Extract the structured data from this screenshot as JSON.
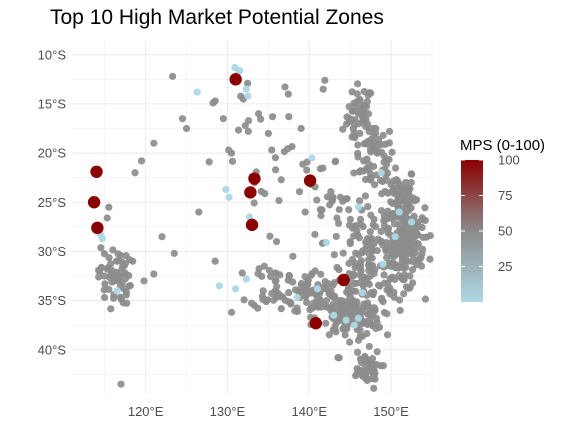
{
  "chart_data": {
    "type": "scatter",
    "title": "Top 10 High Market Potential Zones",
    "xlabel": "",
    "ylabel": "",
    "xlim": [
      111,
      155
    ],
    "ylim": [
      -44.5,
      -8.5
    ],
    "x_ticks": [
      120,
      130,
      140,
      150
    ],
    "x_tick_labels": [
      "120°E",
      "130°E",
      "140°E",
      "150°E"
    ],
    "y_ticks": [
      -10,
      -15,
      -20,
      -25,
      -30,
      -35,
      -40
    ],
    "y_tick_labels": [
      "10°S",
      "15°S",
      "20°S",
      "25°S",
      "30°S",
      "35°S",
      "40°S"
    ],
    "grid": true,
    "legend": {
      "title": "MPS (0-100)",
      "placement": "right",
      "ticks": [
        25,
        50,
        75,
        100
      ],
      "min": 0,
      "max": 100,
      "colors": {
        "low": "#add8e6",
        "mid": "#8c8c8c",
        "high": "#8b0000"
      }
    },
    "point_colors": {
      "other": "#8c8c8c",
      "light": "#add8e6",
      "top": "#8b0000"
    },
    "top10": [
      {
        "x": 131.0,
        "y": -12.5
      },
      {
        "x": 114.0,
        "y": -21.9
      },
      {
        "x": 133.3,
        "y": -22.6
      },
      {
        "x": 140.1,
        "y": -22.8
      },
      {
        "x": 132.8,
        "y": -24.0
      },
      {
        "x": 113.7,
        "y": -25.0
      },
      {
        "x": 133.0,
        "y": -27.3
      },
      {
        "x": 114.1,
        "y": -27.6
      },
      {
        "x": 144.2,
        "y": -32.9
      },
      {
        "x": 140.8,
        "y": -37.3
      }
    ],
    "light_points": [
      [
        130.9,
        -11.3
      ],
      [
        131.5,
        -11.6
      ],
      [
        131.2,
        -12.0
      ],
      [
        132.3,
        -13.5
      ],
      [
        132.5,
        -14.2
      ],
      [
        114.7,
        -28.7
      ],
      [
        114.5,
        -28.3
      ],
      [
        132.3,
        -32.8
      ],
      [
        129.0,
        -33.5
      ],
      [
        131.0,
        -33.8
      ],
      [
        129.8,
        -23.7
      ],
      [
        130.2,
        -24.5
      ],
      [
        132.7,
        -26.5
      ],
      [
        141.0,
        -33.8
      ],
      [
        138.5,
        -34.7
      ],
      [
        143.0,
        -36.5
      ],
      [
        144.5,
        -37.0
      ],
      [
        145.5,
        -37.5
      ],
      [
        146.0,
        -36.8
      ],
      [
        146.5,
        -34.2
      ],
      [
        149.0,
        -31.3
      ],
      [
        150.5,
        -28.5
      ],
      [
        152.5,
        -27.0
      ],
      [
        140.3,
        -20.5
      ],
      [
        146.0,
        -25.5
      ],
      [
        151.0,
        -26.0
      ],
      [
        148.8,
        -22.0
      ],
      [
        142.1,
        -29.1
      ],
      [
        116.5,
        -34.0
      ],
      [
        126.3,
        -13.8
      ]
    ],
    "gray_clusters": [
      {
        "cx": 146.2,
        "cy": -16.2,
        "sx": 0.8,
        "sy": 1.6,
        "n": 45
      },
      {
        "cx": 148.0,
        "cy": -20.5,
        "sx": 1.2,
        "sy": 1.8,
        "n": 60
      },
      {
        "cx": 151.0,
        "cy": -24.5,
        "sx": 1.0,
        "sy": 1.6,
        "n": 70
      },
      {
        "cx": 152.3,
        "cy": -28.0,
        "sx": 0.9,
        "sy": 1.4,
        "n": 90
      },
      {
        "cx": 151.5,
        "cy": -31.0,
        "sx": 1.2,
        "sy": 1.5,
        "n": 60
      },
      {
        "cx": 147.5,
        "cy": -29.0,
        "sx": 2.8,
        "sy": 2.2,
        "n": 90
      },
      {
        "cx": 147.0,
        "cy": -33.5,
        "sx": 2.2,
        "sy": 1.5,
        "n": 100
      },
      {
        "cx": 144.8,
        "cy": -36.8,
        "sx": 2.0,
        "sy": 1.0,
        "n": 120
      },
      {
        "cx": 140.5,
        "cy": -34.3,
        "sx": 1.6,
        "sy": 1.1,
        "n": 60
      },
      {
        "cx": 136.0,
        "cy": -33.5,
        "sx": 1.6,
        "sy": 1.2,
        "n": 40
      },
      {
        "cx": 146.7,
        "cy": -42.0,
        "sx": 1.0,
        "sy": 1.0,
        "n": 40
      },
      {
        "cx": 116.2,
        "cy": -32.5,
        "sx": 1.0,
        "sy": 1.5,
        "n": 60
      },
      {
        "cx": 142.0,
        "cy": -24.0,
        "sx": 2.5,
        "sy": 3.0,
        "n": 30
      },
      {
        "cx": 134.5,
        "cy": -21.5,
        "sx": 3.0,
        "sy": 4.5,
        "n": 30
      }
    ],
    "gray_points": [
      [
        117.0,
        -43.5
      ],
      [
        123.3,
        -12.2
      ],
      [
        126.5,
        -26.0
      ],
      [
        125.0,
        -17.5
      ],
      [
        128.5,
        -14.7
      ],
      [
        121.0,
        -19.0
      ],
      [
        119.5,
        -20.8
      ],
      [
        118.7,
        -22.0
      ],
      [
        124.5,
        -16.5
      ],
      [
        122.0,
        -28.5
      ],
      [
        123.5,
        -30.2
      ],
      [
        121.0,
        -32.3
      ],
      [
        119.8,
        -33.0
      ],
      [
        129.5,
        -16.5
      ],
      [
        130.5,
        -20.0
      ],
      [
        133.8,
        -16.0
      ],
      [
        135.0,
        -18.0
      ],
      [
        137.5,
        -16.3
      ],
      [
        139.0,
        -17.5
      ],
      [
        141.7,
        -13.5
      ],
      [
        141.9,
        -12.6
      ],
      [
        139.5,
        -26.0
      ],
      [
        136.0,
        -29.0
      ],
      [
        138.0,
        -30.5
      ],
      [
        128.5,
        -31.0
      ],
      [
        130.5,
        -36.2
      ],
      [
        134.5,
        -31.5
      ],
      [
        143.5,
        -40.8
      ],
      [
        115.5,
        -25.5
      ],
      [
        115.3,
        -26.6
      ]
    ]
  }
}
